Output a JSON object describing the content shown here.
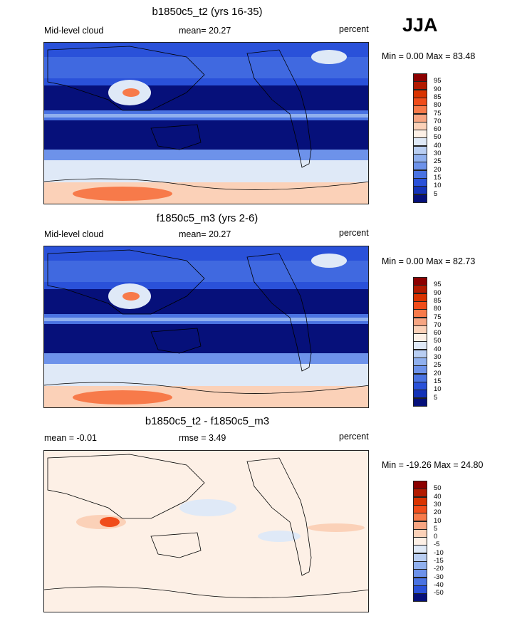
{
  "season": "JJA",
  "chart_data": [
    {
      "type": "heatmap",
      "title": "b1850c5_t2 (yrs 16-35)",
      "left_label": "Mid-level cloud",
      "center_label": "mean=  20.27",
      "units": "percent",
      "minmax": "Min =   0.00 Max =  83.48",
      "min": 0.0,
      "max": 83.48,
      "mean": 20.27,
      "levels": [
        "95",
        "90",
        "85",
        "80",
        "75",
        "70",
        "60",
        "50",
        "40",
        "30",
        "25",
        "20",
        "15",
        "10",
        "5"
      ],
      "colors": [
        "#8c0000",
        "#b31a00",
        "#d93300",
        "#f04c1a",
        "#f77a4a",
        "#f7a582",
        "#fbd1b8",
        "#fdf0e6",
        "#dfe9f7",
        "#b9cef2",
        "#90b0ee",
        "#6d92ea",
        "#4a73e2",
        "#2a51d9",
        "#1433b8",
        "#06107a"
      ]
    },
    {
      "type": "heatmap",
      "title": "f1850c5_m3 (yrs 2-6)",
      "left_label": "Mid-level cloud",
      "center_label": "mean=  20.27",
      "units": "percent",
      "minmax": "Min =   0.00 Max =  82.73",
      "min": 0.0,
      "max": 82.73,
      "mean": 20.27,
      "levels": [
        "95",
        "90",
        "85",
        "80",
        "75",
        "70",
        "60",
        "50",
        "40",
        "30",
        "25",
        "20",
        "15",
        "10",
        "5"
      ],
      "colors": [
        "#8c0000",
        "#b31a00",
        "#d93300",
        "#f04c1a",
        "#f77a4a",
        "#f7a582",
        "#fbd1b8",
        "#fdf0e6",
        "#dfe9f7",
        "#b9cef2",
        "#90b0ee",
        "#6d92ea",
        "#4a73e2",
        "#2a51d9",
        "#1433b8",
        "#06107a"
      ]
    },
    {
      "type": "heatmap",
      "title": "b1850c5_t2 - f1850c5_m3",
      "left_label": "mean =  -0.01",
      "center_label": "rmse =   3.49",
      "units": "percent",
      "minmax": "Min = -19.26 Max =  24.80",
      "min": -19.26,
      "max": 24.8,
      "mean": -0.01,
      "rmse": 3.49,
      "levels": [
        "50",
        "40",
        "30",
        "20",
        "10",
        "5",
        "0",
        "-5",
        "-10",
        "-15",
        "-20",
        "-30",
        "-40",
        "-50"
      ],
      "colors": [
        "#8c0000",
        "#b31a00",
        "#d93300",
        "#f04c1a",
        "#f77a4a",
        "#f7a582",
        "#fbd1b8",
        "#fdf0e6",
        "#dfe9f7",
        "#b9cef2",
        "#90b0ee",
        "#6d92ea",
        "#4a73e2",
        "#2a51d9",
        "#06107a"
      ]
    }
  ]
}
